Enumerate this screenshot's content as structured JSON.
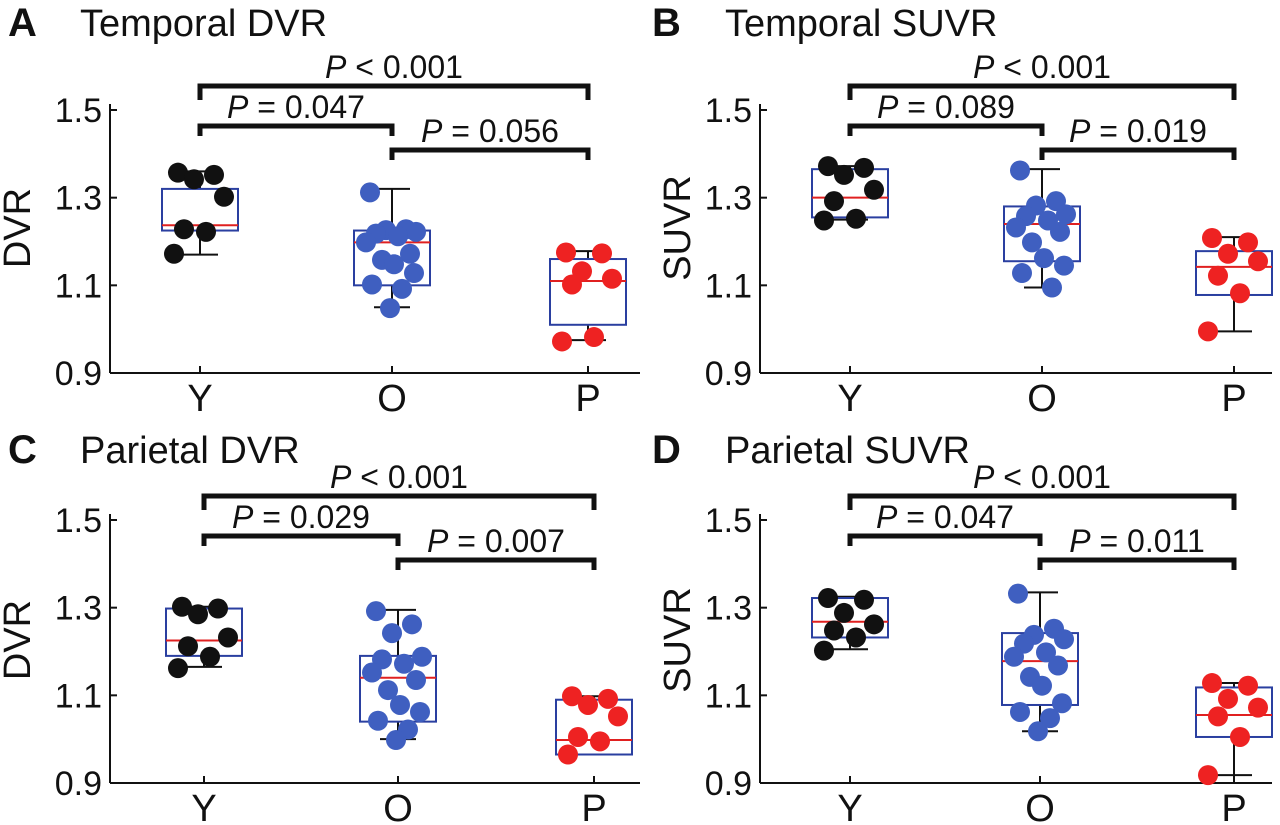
{
  "colors": {
    "box": "#2a3fa0",
    "median": "#e02020",
    "young": "#111111",
    "old": "#3f5fc0",
    "patient": "#ee2222",
    "axis": "#111111",
    "bracket": "#111111"
  },
  "chart_data": [
    {
      "panel_letter": "A",
      "type": "box",
      "title": "Temporal DVR",
      "ylabel": "DVR",
      "categories": [
        "Y",
        "O",
        "P"
      ],
      "ylim": [
        0.9,
        1.5
      ],
      "yticks": [
        "0.9",
        "1.1",
        "1.3",
        "1.5"
      ],
      "boxes": [
        {
          "group": "Y",
          "whisker_low": 1.17,
          "q1": 1.225,
          "median": 1.237,
          "q3": 1.32,
          "whisker_high": 1.36
        },
        {
          "group": "O",
          "whisker_low": 1.05,
          "q1": 1.1,
          "median": 1.198,
          "q3": 1.225,
          "whisker_high": 1.32
        },
        {
          "group": "P",
          "whisker_low": 0.975,
          "q1": 1.01,
          "median": 1.11,
          "q3": 1.16,
          "whisker_high": 1.178
        }
      ],
      "points": {
        "Y": [
          1.357,
          1.352,
          1.342,
          1.302,
          1.228,
          1.222,
          1.172
        ],
        "O": [
          1.312,
          1.228,
          1.226,
          1.222,
          1.218,
          1.212,
          1.198,
          1.172,
          1.158,
          1.148,
          1.128,
          1.102,
          1.092,
          1.048
        ],
        "P": [
          1.175,
          1.173,
          1.132,
          1.115,
          1.102,
          0.982,
          0.972
        ]
      },
      "comparisons": [
        {
          "from": "Y",
          "to": "P",
          "label": "< 0.001"
        },
        {
          "from": "Y",
          "to": "O",
          "label": "= 0.047"
        },
        {
          "from": "O",
          "to": "P",
          "label": "= 0.056"
        }
      ]
    },
    {
      "panel_letter": "B",
      "type": "box",
      "title": "Temporal SUVR",
      "ylabel": "SUVR",
      "categories": [
        "Y",
        "O",
        "P"
      ],
      "ylim": [
        0.9,
        1.5
      ],
      "yticks": [
        "0.9",
        "1.1",
        "1.3",
        "1.5"
      ],
      "boxes": [
        {
          "group": "Y",
          "whisker_low": 1.25,
          "q1": 1.255,
          "median": 1.3,
          "q3": 1.365,
          "whisker_high": 1.372
        },
        {
          "group": "O",
          "whisker_low": 1.095,
          "q1": 1.155,
          "median": 1.24,
          "q3": 1.28,
          "whisker_high": 1.365
        },
        {
          "group": "P",
          "whisker_low": 0.995,
          "q1": 1.078,
          "median": 1.142,
          "q3": 1.178,
          "whisker_high": 1.21
        }
      ],
      "points": {
        "Y": [
          1.372,
          1.368,
          1.352,
          1.318,
          1.292,
          1.252,
          1.248
        ],
        "O": [
          1.362,
          1.292,
          1.282,
          1.262,
          1.258,
          1.248,
          1.232,
          1.222,
          1.198,
          1.162,
          1.145,
          1.128,
          1.095
        ],
        "P": [
          1.208,
          1.198,
          1.172,
          1.155,
          1.122,
          1.082,
          0.995
        ]
      },
      "comparisons": [
        {
          "from": "Y",
          "to": "P",
          "label": "< 0.001"
        },
        {
          "from": "Y",
          "to": "O",
          "label": "= 0.089"
        },
        {
          "from": "O",
          "to": "P",
          "label": "= 0.019"
        }
      ]
    },
    {
      "panel_letter": "C",
      "type": "box",
      "title": "Parietal DVR",
      "ylabel": "DVR",
      "categories": [
        "Y",
        "O",
        "P"
      ],
      "ylim": [
        0.9,
        1.5
      ],
      "yticks": [
        "0.9",
        "1.1",
        "1.3",
        "1.5"
      ],
      "boxes": [
        {
          "group": "Y",
          "whisker_low": 1.165,
          "q1": 1.19,
          "median": 1.225,
          "q3": 1.298,
          "whisker_high": 1.302
        },
        {
          "group": "O",
          "whisker_low": 1.0,
          "q1": 1.04,
          "median": 1.14,
          "q3": 1.19,
          "whisker_high": 1.295
        },
        {
          "group": "P",
          "whisker_low": 0.965,
          "q1": 0.965,
          "median": 0.998,
          "q3": 1.09,
          "whisker_high": 1.098
        }
      ],
      "points": {
        "Y": [
          1.302,
          1.298,
          1.285,
          1.232,
          1.212,
          1.188,
          1.162
        ],
        "O": [
          1.292,
          1.262,
          1.242,
          1.188,
          1.182,
          1.172,
          1.152,
          1.135,
          1.112,
          1.078,
          1.062,
          1.042,
          1.022,
          0.998
        ],
        "P": [
          1.098,
          1.092,
          1.078,
          1.052,
          1.005,
          0.995,
          0.965
        ]
      },
      "comparisons": [
        {
          "from": "Y",
          "to": "P",
          "label": "< 0.001"
        },
        {
          "from": "Y",
          "to": "O",
          "label": "= 0.029"
        },
        {
          "from": "O",
          "to": "P",
          "label": "= 0.007"
        }
      ]
    },
    {
      "panel_letter": "D",
      "type": "box",
      "title": "Parietal SUVR",
      "ylabel": "SUVR",
      "categories": [
        "Y",
        "O",
        "P"
      ],
      "ylim": [
        0.9,
        1.5
      ],
      "yticks": [
        "0.9",
        "1.1",
        "1.3",
        "1.5"
      ],
      "boxes": [
        {
          "group": "Y",
          "whisker_low": 1.205,
          "q1": 1.232,
          "median": 1.268,
          "q3": 1.322,
          "whisker_high": 1.325
        },
        {
          "group": "O",
          "whisker_low": 1.018,
          "q1": 1.078,
          "median": 1.178,
          "q3": 1.242,
          "whisker_high": 1.335
        },
        {
          "group": "P",
          "whisker_low": 0.918,
          "q1": 1.005,
          "median": 1.055,
          "q3": 1.118,
          "whisker_high": 1.128
        }
      ],
      "points": {
        "Y": [
          1.322,
          1.318,
          1.288,
          1.262,
          1.248,
          1.232,
          1.202
        ],
        "O": [
          1.332,
          1.252,
          1.238,
          1.228,
          1.218,
          1.198,
          1.188,
          1.168,
          1.142,
          1.122,
          1.082,
          1.062,
          1.048,
          1.018
        ],
        "P": [
          1.128,
          1.122,
          1.092,
          1.072,
          1.052,
          1.005,
          0.918
        ]
      },
      "comparisons": [
        {
          "from": "Y",
          "to": "P",
          "label": "< 0.001"
        },
        {
          "from": "Y",
          "to": "O",
          "label": "= 0.047"
        },
        {
          "from": "O",
          "to": "P",
          "label": "= 0.011"
        }
      ]
    }
  ]
}
